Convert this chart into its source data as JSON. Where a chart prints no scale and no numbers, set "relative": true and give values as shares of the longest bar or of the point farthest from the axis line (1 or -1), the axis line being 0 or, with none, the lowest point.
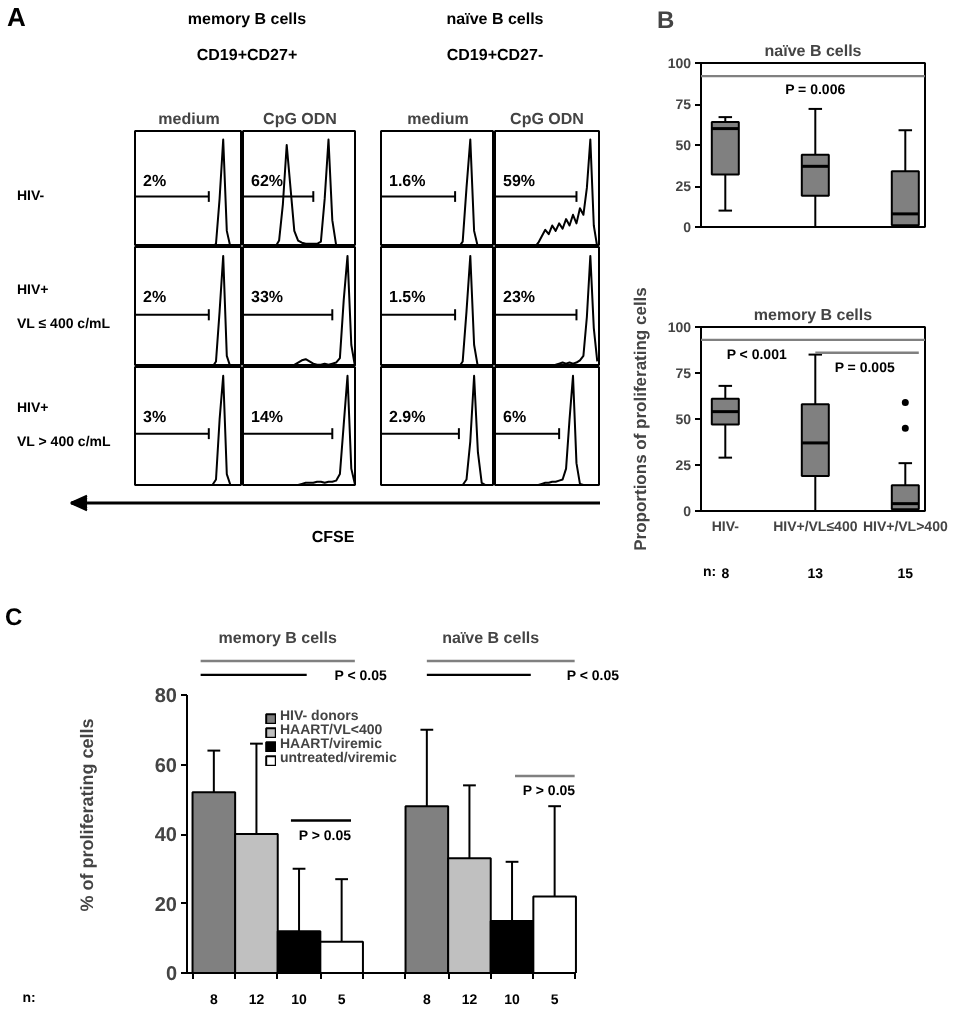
{
  "chart_data": [
    {
      "type": "other",
      "annotations": [
        "A",
        "memory B cells",
        "CD19+CD27+",
        "naïve B cells",
        "CD19+CD27-"
      ]
    },
    {
      "type": "other",
      "annotations": [
        "HIV-",
        "HIV+\nVL ≤ 400 c/mL",
        "HIV+\nVL > 400 c/mL"
      ]
    },
    {
      "type": "line",
      "relative": true,
      "tick_labels": false,
      "title": "medium",
      "categories": [
        null,
        null,
        null,
        null,
        null,
        null,
        null,
        null,
        null,
        null,
        null,
        null,
        null,
        null,
        null,
        null,
        null,
        null,
        null,
        null,
        null,
        null,
        null,
        null,
        null,
        null,
        null,
        null,
        null,
        null
      ],
      "series": [
        {
          "color": "#000000",
          "values": [
            0,
            0,
            0,
            0,
            0,
            0,
            0,
            0,
            0,
            0,
            0,
            0,
            0,
            0,
            0,
            0,
            0,
            0,
            0,
            0,
            0,
            0,
            0.03,
            0.45,
            1,
            0.15,
            0,
            0,
            0,
            0
          ]
        }
      ],
      "annotations": [
        "2%"
      ]
    },
    {
      "type": "line",
      "relative": true,
      "tick_labels": false,
      "title": "CpG ODN",
      "categories": [
        null,
        null,
        null,
        null,
        null,
        null,
        null,
        null,
        null,
        null,
        null,
        null,
        null,
        null,
        null,
        null,
        null,
        null,
        null,
        null,
        null,
        null,
        null,
        null,
        null,
        null,
        null,
        null,
        null,
        null
      ],
      "series": [
        {
          "color": "#000000",
          "values": [
            0,
            0,
            0,
            0,
            0,
            0,
            0,
            0,
            0,
            0.06,
            0.4,
            0.95,
            0.55,
            0.15,
            0.06,
            0.04,
            0.03,
            0.03,
            0.03,
            0.03,
            0.05,
            0.45,
            1,
            0.25,
            0.02,
            0,
            0,
            0,
            0,
            0
          ]
        }
      ],
      "annotations": [
        "62%"
      ]
    },
    {
      "type": "line",
      "relative": true,
      "tick_labels": false,
      "title": "medium",
      "categories": [
        null,
        null,
        null,
        null,
        null,
        null,
        null,
        null,
        null,
        null,
        null,
        null,
        null,
        null,
        null,
        null,
        null,
        null,
        null,
        null,
        null,
        null,
        null,
        null,
        null,
        null,
        null,
        null,
        null,
        null
      ],
      "series": [
        {
          "color": "#000000",
          "values": [
            0,
            0,
            0,
            0,
            0,
            0,
            0,
            0,
            0,
            0,
            0,
            0,
            0,
            0,
            0,
            0,
            0,
            0,
            0,
            0,
            0,
            0.05,
            0.55,
            1,
            0.15,
            0,
            0,
            0,
            0,
            0
          ]
        }
      ],
      "annotations": [
        "1.6%"
      ]
    },
    {
      "type": "line",
      "relative": true,
      "tick_labels": false,
      "title": "CpG ODN",
      "categories": [
        null,
        null,
        null,
        null,
        null,
        null,
        null,
        null,
        null,
        null,
        null,
        null,
        null,
        null,
        null,
        null,
        null,
        null,
        null,
        null,
        null,
        null,
        null,
        null,
        null,
        null,
        null,
        null,
        null,
        null
      ],
      "series": [
        {
          "color": "#000000",
          "values": [
            0,
            0,
            0,
            0,
            0,
            0,
            0,
            0,
            0,
            0,
            0,
            0,
            0.04,
            0.1,
            0.16,
            0.12,
            0.2,
            0.15,
            0.22,
            0.17,
            0.26,
            0.2,
            0.3,
            0.22,
            0.36,
            0.3,
            0.55,
            1,
            0.2,
            0
          ]
        }
      ],
      "annotations": [
        "59%"
      ]
    },
    {
      "type": "line",
      "relative": true,
      "tick_labels": false,
      "categories": [
        null,
        null,
        null,
        null,
        null,
        null,
        null,
        null,
        null,
        null,
        null,
        null,
        null,
        null,
        null,
        null,
        null,
        null,
        null,
        null,
        null,
        null,
        null,
        null,
        null,
        null,
        null,
        null,
        null,
        null
      ],
      "series": [
        {
          "color": "#000000",
          "values": [
            0,
            0,
            0,
            0,
            0,
            0,
            0,
            0,
            0,
            0,
            0,
            0,
            0,
            0,
            0,
            0,
            0,
            0,
            0,
            0,
            0,
            0,
            0.05,
            0.5,
            1,
            0.1,
            0,
            0,
            0,
            0
          ]
        }
      ],
      "annotations": [
        "2%"
      ]
    },
    {
      "type": "line",
      "relative": true,
      "tick_labels": false,
      "categories": [
        null,
        null,
        null,
        null,
        null,
        null,
        null,
        null,
        null,
        null,
        null,
        null,
        null,
        null,
        null,
        null,
        null,
        null,
        null,
        null,
        null,
        null,
        null,
        null,
        null,
        null,
        null,
        null,
        null,
        null
      ],
      "series": [
        {
          "color": "#000000",
          "values": [
            0,
            0,
            0,
            0,
            0,
            0,
            0,
            0,
            0,
            0,
            0,
            0,
            0,
            0.02,
            0.04,
            0.06,
            0.07,
            0.05,
            0.03,
            0.02,
            0.02,
            0.03,
            0.02,
            0.03,
            0.04,
            0.08,
            0.6,
            1,
            0.2,
            0
          ]
        }
      ],
      "annotations": [
        "33%"
      ]
    },
    {
      "type": "line",
      "relative": true,
      "tick_labels": false,
      "categories": [
        null,
        null,
        null,
        null,
        null,
        null,
        null,
        null,
        null,
        null,
        null,
        null,
        null,
        null,
        null,
        null,
        null,
        null,
        null,
        null,
        null,
        null,
        null,
        null,
        null,
        null,
        null,
        null,
        null,
        null
      ],
      "series": [
        {
          "color": "#000000",
          "values": [
            0,
            0,
            0,
            0,
            0,
            0,
            0,
            0,
            0,
            0,
            0,
            0,
            0,
            0,
            0,
            0,
            0,
            0,
            0,
            0,
            0,
            0.05,
            0.5,
            1,
            0.2,
            0,
            0,
            0,
            0,
            0
          ]
        }
      ],
      "annotations": [
        "1.5%"
      ]
    },
    {
      "type": "line",
      "relative": true,
      "tick_labels": false,
      "categories": [
        null,
        null,
        null,
        null,
        null,
        null,
        null,
        null,
        null,
        null,
        null,
        null,
        null,
        null,
        null,
        null,
        null,
        null,
        null,
        null,
        null,
        null,
        null,
        null,
        null,
        null,
        null,
        null,
        null,
        null
      ],
      "series": [
        {
          "color": "#000000",
          "values": [
            0,
            0,
            0,
            0,
            0,
            0,
            0,
            0,
            0,
            0,
            0,
            0,
            0,
            0,
            0,
            0,
            0,
            0.02,
            0.03,
            0.04,
            0.03,
            0.04,
            0.03,
            0.04,
            0.06,
            0.1,
            0.45,
            1,
            0.35,
            0.05
          ]
        }
      ],
      "annotations": [
        "23%"
      ]
    },
    {
      "type": "line",
      "relative": true,
      "tick_labels": false,
      "categories": [
        null,
        null,
        null,
        null,
        null,
        null,
        null,
        null,
        null,
        null,
        null,
        null,
        null,
        null,
        null,
        null,
        null,
        null,
        null,
        null,
        null,
        null,
        null,
        null,
        null,
        null,
        null,
        null,
        null,
        null
      ],
      "series": [
        {
          "color": "#000000",
          "values": [
            0,
            0,
            0,
            0,
            0,
            0,
            0,
            0,
            0,
            0,
            0,
            0,
            0,
            0,
            0,
            0,
            0,
            0,
            0,
            0,
            0,
            0,
            0.05,
            0.6,
            1,
            0.1,
            0,
            0,
            0,
            0
          ]
        }
      ],
      "annotations": [
        "3%"
      ]
    },
    {
      "type": "line",
      "relative": true,
      "tick_labels": false,
      "categories": [
        null,
        null,
        null,
        null,
        null,
        null,
        null,
        null,
        null,
        null,
        null,
        null,
        null,
        null,
        null,
        null,
        null,
        null,
        null,
        null,
        null,
        null,
        null,
        null,
        null,
        null,
        null,
        null,
        null,
        null
      ],
      "series": [
        {
          "color": "#000000",
          "values": [
            0,
            0,
            0,
            0,
            0,
            0,
            0,
            0,
            0,
            0,
            0,
            0,
            0,
            0,
            0,
            0.01,
            0.02,
            0.02,
            0.02,
            0.03,
            0.03,
            0.02,
            0.03,
            0.03,
            0.04,
            0.1,
            0.55,
            1,
            0.15,
            0
          ]
        }
      ],
      "annotations": [
        "14%"
      ]
    },
    {
      "type": "line",
      "relative": true,
      "tick_labels": false,
      "categories": [
        null,
        null,
        null,
        null,
        null,
        null,
        null,
        null,
        null,
        null,
        null,
        null,
        null,
        null,
        null,
        null,
        null,
        null,
        null,
        null,
        null,
        null,
        null,
        null,
        null,
        null,
        null,
        null,
        null,
        null
      ],
      "series": [
        {
          "color": "#000000",
          "values": [
            0,
            0,
            0,
            0,
            0,
            0,
            0,
            0,
            0,
            0,
            0,
            0,
            0,
            0,
            0,
            0,
            0,
            0,
            0,
            0,
            0,
            0,
            0.05,
            0.4,
            1,
            0.3,
            0.02,
            0,
            0,
            0
          ]
        }
      ],
      "annotations": [
        "2.9%"
      ]
    },
    {
      "type": "line",
      "relative": true,
      "tick_labels": false,
      "categories": [
        null,
        null,
        null,
        null,
        null,
        null,
        null,
        null,
        null,
        null,
        null,
        null,
        null,
        null,
        null,
        null,
        null,
        null,
        null,
        null,
        null,
        null,
        null,
        null,
        null,
        null,
        null,
        null,
        null,
        null
      ],
      "series": [
        {
          "color": "#000000",
          "values": [
            0,
            0,
            0,
            0,
            0,
            0,
            0,
            0,
            0,
            0,
            0,
            0,
            0,
            0.01,
            0.02,
            0.02,
            0.03,
            0.03,
            0.04,
            0.05,
            0.15,
            0.6,
            1,
            0.2,
            0.01,
            0,
            0,
            0,
            0,
            0
          ]
        }
      ],
      "annotations": [
        "6%"
      ]
    },
    {
      "type": "other",
      "annotations": [
        "CFSE"
      ]
    },
    {
      "type": "box",
      "title": "naïve B cells",
      "tick_labels": "y",
      "ylim": [
        0,
        100
      ],
      "yticks": [
        0,
        25,
        50,
        75,
        100
      ],
      "series": [
        {
          "color": "#808080",
          "boxes": [
            {
              "low": 10,
              "q1": 32,
              "median": 60,
              "q3": 64,
              "high": 67
            },
            {
              "low": 0,
              "q1": 19,
              "median": 37,
              "q3": 44,
              "high": 72
            },
            {
              "low": 0,
              "q1": 1,
              "median": 8,
              "q3": 34,
              "high": 59
            }
          ]
        }
      ],
      "ref_lines": [
        {
          "axis": "y",
          "value": 92,
          "color": "#808080"
        }
      ],
      "annotations": [
        "B",
        "P = 0.006"
      ]
    },
    {
      "type": "box",
      "title": "memory B cells",
      "ylabel": "Proportions of proliferating cells",
      "categories": [
        "HIV-",
        "HIV+/VL≤400",
        "HIV+/VL>400"
      ],
      "ylim": [
        0,
        100
      ],
      "yticks": [
        0,
        25,
        50,
        75,
        100
      ],
      "series": [
        {
          "color": "#808080",
          "boxes": [
            {
              "low": 29,
              "q1": 47,
              "median": 54,
              "q3": 61,
              "high": 68
            },
            {
              "low": 0,
              "q1": 19,
              "median": 37,
              "q3": 58,
              "high": 85
            },
            {
              "low": 0,
              "q1": 1,
              "median": 4,
              "q3": 14,
              "high": 26,
              "outliers": [
                59,
                45
              ]
            }
          ]
        }
      ],
      "ref_lines": [
        {
          "axis": "y",
          "value": 93,
          "label": "P < 0.001",
          "color": "#808080"
        }
      ],
      "annotations": [
        "P = 0.005"
      ]
    },
    {
      "type": "other",
      "annotations": [
        "n:",
        "8",
        "13",
        "15"
      ]
    },
    {
      "type": "other",
      "annotations": [
        "C",
        "n:"
      ]
    },
    {
      "type": "bar",
      "categories": [
        "memory B cells",
        "naïve B cells"
      ],
      "ylabel": "% of proliferating cells",
      "ylim": [
        0,
        80
      ],
      "yticks": [
        0,
        20,
        40,
        60,
        80
      ],
      "legend": "top",
      "series": [
        {
          "name": "HIV- donors",
          "color": "#808080",
          "values": [
            52,
            48
          ],
          "errors": [
            [
              52,
              64
            ],
            [
              48,
              70
            ]
          ]
        },
        {
          "name": "HAART/VL<400",
          "color": "#c0c0c0",
          "values": [
            40,
            33
          ],
          "errors": [
            [
              40,
              66
            ],
            [
              33,
              54
            ]
          ]
        },
        {
          "name": "HAART/viremic",
          "color": "#000000",
          "values": [
            12,
            15
          ],
          "errors": [
            [
              12,
              30
            ],
            [
              15,
              32
            ]
          ]
        },
        {
          "name": "untreated/viremic",
          "color": "#ffffff",
          "values": [
            9,
            22
          ],
          "errors": [
            [
              9,
              27
            ],
            [
              22,
              48
            ]
          ]
        }
      ],
      "annotations": [
        "P < 0.05",
        "P < 0.05",
        "P > 0.05",
        "P > 0.05"
      ]
    },
    {
      "type": "other",
      "annotations": [
        "8",
        "12",
        "10",
        "5",
        "8",
        "12",
        "10",
        "5"
      ]
    }
  ]
}
